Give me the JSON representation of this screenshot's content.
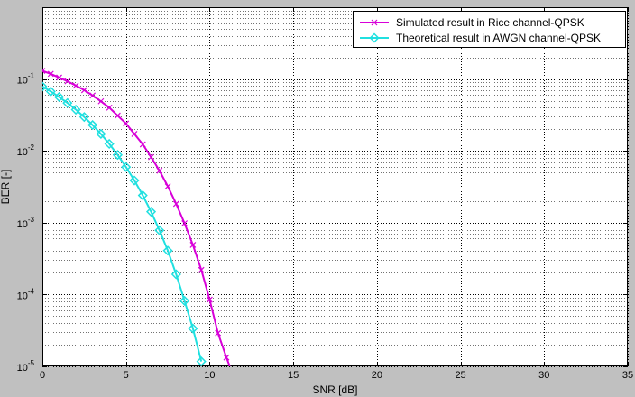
{
  "chart_data": {
    "type": "line",
    "title": "",
    "xlabel": "SNR [dB]",
    "ylabel": "BER [-]",
    "xlim": [
      0,
      35
    ],
    "ylim": [
      1e-05,
      1
    ],
    "yscale": "log",
    "grid": true,
    "legend_position": "top-right",
    "x_ticks": [
      "0",
      "5",
      "10",
      "15",
      "20",
      "25",
      "30",
      "35"
    ],
    "y_ticks": [
      {
        "base": "10",
        "exp": "-1",
        "value": 0.1
      },
      {
        "base": "10",
        "exp": "-2",
        "value": 0.01
      },
      {
        "base": "10",
        "exp": "-3",
        "value": 0.001
      },
      {
        "base": "10",
        "exp": "-4",
        "value": 0.0001
      },
      {
        "base": "10",
        "exp": "-5",
        "value": 1e-05
      }
    ],
    "series": [
      {
        "name": "Simulated result in Rice channel-QPSK",
        "color": "#d800d8",
        "marker": "x",
        "x": [
          0,
          0.5,
          1,
          1.5,
          2,
          2.5,
          3,
          3.5,
          4,
          4.5,
          5,
          5.5,
          6,
          6.5,
          7,
          7.5,
          8,
          8.5,
          9,
          9.5,
          10,
          10.5,
          11,
          11.2
        ],
        "y": [
          0.13,
          0.118,
          0.105,
          0.093,
          0.081,
          0.07,
          0.059,
          0.049,
          0.04,
          0.031,
          0.024,
          0.0172,
          0.0123,
          0.0082,
          0.0053,
          0.0032,
          0.00183,
          0.00098,
          0.00049,
          0.00022,
          8.5e-05,
          2.9e-05,
          1.33e-05,
          1e-05
        ]
      },
      {
        "name": "Theoretical result in AWGN channel-QPSK",
        "color": "#20e0e0",
        "marker": "diamond",
        "x": [
          0,
          0.5,
          1,
          1.5,
          2,
          2.5,
          3,
          3.5,
          4,
          4.5,
          5,
          5.5,
          6,
          6.5,
          7,
          7.5,
          8,
          8.5,
          9,
          9.5
        ],
        "y": [
          0.0786,
          0.0671,
          0.0563,
          0.0464,
          0.0375,
          0.0296,
          0.0229,
          0.0172,
          0.0125,
          0.00878,
          0.00595,
          0.00387,
          0.0024,
          0.00142,
          0.000783,
          0.000408,
          0.000191,
          8.16e-05,
          3.36e-05,
          1.17e-05
        ]
      }
    ]
  }
}
